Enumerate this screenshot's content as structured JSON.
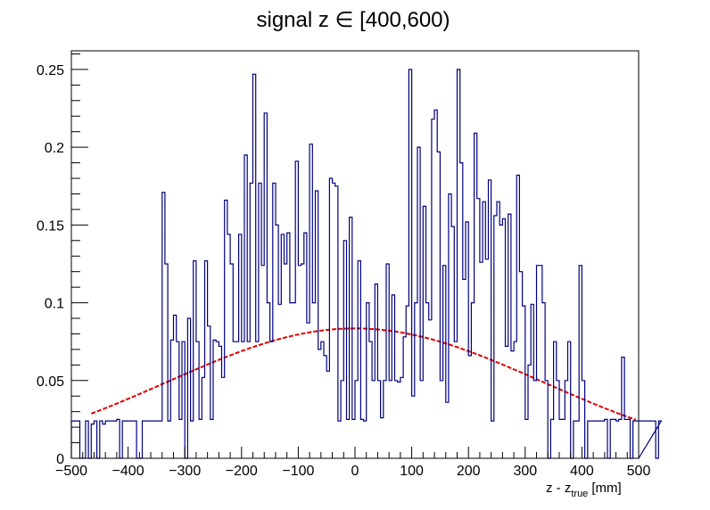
{
  "chart_data": {
    "type": "histogram",
    "title": "signal z ∈ [400,600)",
    "xlabel": {
      "main": "z - z",
      "sub": "true",
      "unit": "[mm]"
    },
    "ylabel": "",
    "xlim": [
      -500,
      500
    ],
    "ylim": [
      0,
      0.262
    ],
    "x_ticks": [
      -500,
      -400,
      -300,
      -200,
      -100,
      0,
      100,
      200,
      300,
      400,
      500
    ],
    "x_tick_labels": [
      "−500",
      "−400",
      "−300",
      "−200",
      "−100",
      "0",
      "100",
      "200",
      "300",
      "400",
      "500"
    ],
    "y_ticks": [
      0,
      0.05,
      0.1,
      0.15,
      0.2,
      0.25
    ],
    "y_tick_labels": [
      "0",
      "0.05",
      "0.1",
      "0.15",
      "0.2",
      "0.25"
    ],
    "grid": false,
    "legend": "none",
    "colors": {
      "histogram": "#000080",
      "fit": "#e00000",
      "frame": "#000000"
    },
    "bin_width": 5,
    "bin_start": -500,
    "bin_values": [
      0.024,
      0.024,
      0.024,
      0.0,
      0.0,
      0.024,
      0.0,
      0.022,
      0.024,
      0.0,
      0.024,
      0.022,
      0.024,
      0.024,
      0.024,
      0.024,
      0.025,
      0.0,
      0.024,
      0.024,
      0.024,
      0.024,
      0.024,
      0.0,
      0.0,
      0.024,
      0.024,
      0.024,
      0.024,
      0.024,
      0.024,
      0.024,
      0.171,
      0.125,
      0.024,
      0.076,
      0.092,
      0.075,
      0.025,
      0.075,
      0.0,
      0.09,
      0.024,
      0.127,
      0.075,
      0.025,
      0.052,
      0.127,
      0.085,
      0.025,
      0.076,
      0.075,
      0.072,
      0.052,
      0.166,
      0.144,
      0.125,
      0.075,
      0.075,
      0.144,
      0.075,
      0.195,
      0.075,
      0.177,
      0.247,
      0.075,
      0.177,
      0.124,
      0.222,
      0.1,
      0.075,
      0.177,
      0.15,
      0.099,
      0.144,
      0.125,
      0.145,
      0.1,
      0.1,
      0.191,
      0.124,
      0.125,
      0.145,
      0.087,
      0.202,
      0.1,
      0.172,
      0.07,
      0.075,
      0.066,
      0.056,
      0.18,
      0.177,
      0.175,
      0.024,
      0.05,
      0.14,
      0.025,
      0.155,
      0.025,
      0.05,
      0.127,
      0.025,
      0.024,
      0.1,
      0.075,
      0.05,
      0.112,
      0.05,
      0.026,
      0.05,
      0.125,
      0.05,
      0.105,
      0.05,
      0.049,
      0.052,
      0.078,
      0.098,
      0.25,
      0.04,
      0.1,
      0.2,
      0.05,
      0.162,
      0.1,
      0.089,
      0.218,
      0.224,
      0.197,
      0.05,
      0.124,
      0.036,
      0.17,
      0.149,
      0.075,
      0.25,
      0.19,
      0.115,
      0.152,
      0.066,
      0.1,
      0.209,
      0.167,
      0.126,
      0.165,
      0.128,
      0.179,
      0.024,
      0.156,
      0.165,
      0.15,
      0.154,
      0.072,
      0.157,
      0.069,
      0.075,
      0.182,
      0.12,
      0.098,
      0.025,
      0.06,
      0.099,
      0.05,
      0.124,
      0.124,
      0.1,
      0.05,
      0.0,
      0.025,
      0.075,
      0.05,
      0.025,
      0.025,
      0.05,
      0.075,
      0.0,
      0.024,
      0.024,
      0.124,
      0.05,
      0.0,
      0.024,
      0.024,
      0.024,
      0.024,
      0.024,
      0.024,
      0.025,
      0.0,
      0.025,
      0.025,
      0.024,
      0.025,
      0.065,
      0.025,
      0.025,
      0.0,
      0.024,
      0.024,
      0.024,
      0.024,
      0.024,
      0.024,
      0.024,
      0.024,
      0.0,
      0.024
    ]
  }
}
